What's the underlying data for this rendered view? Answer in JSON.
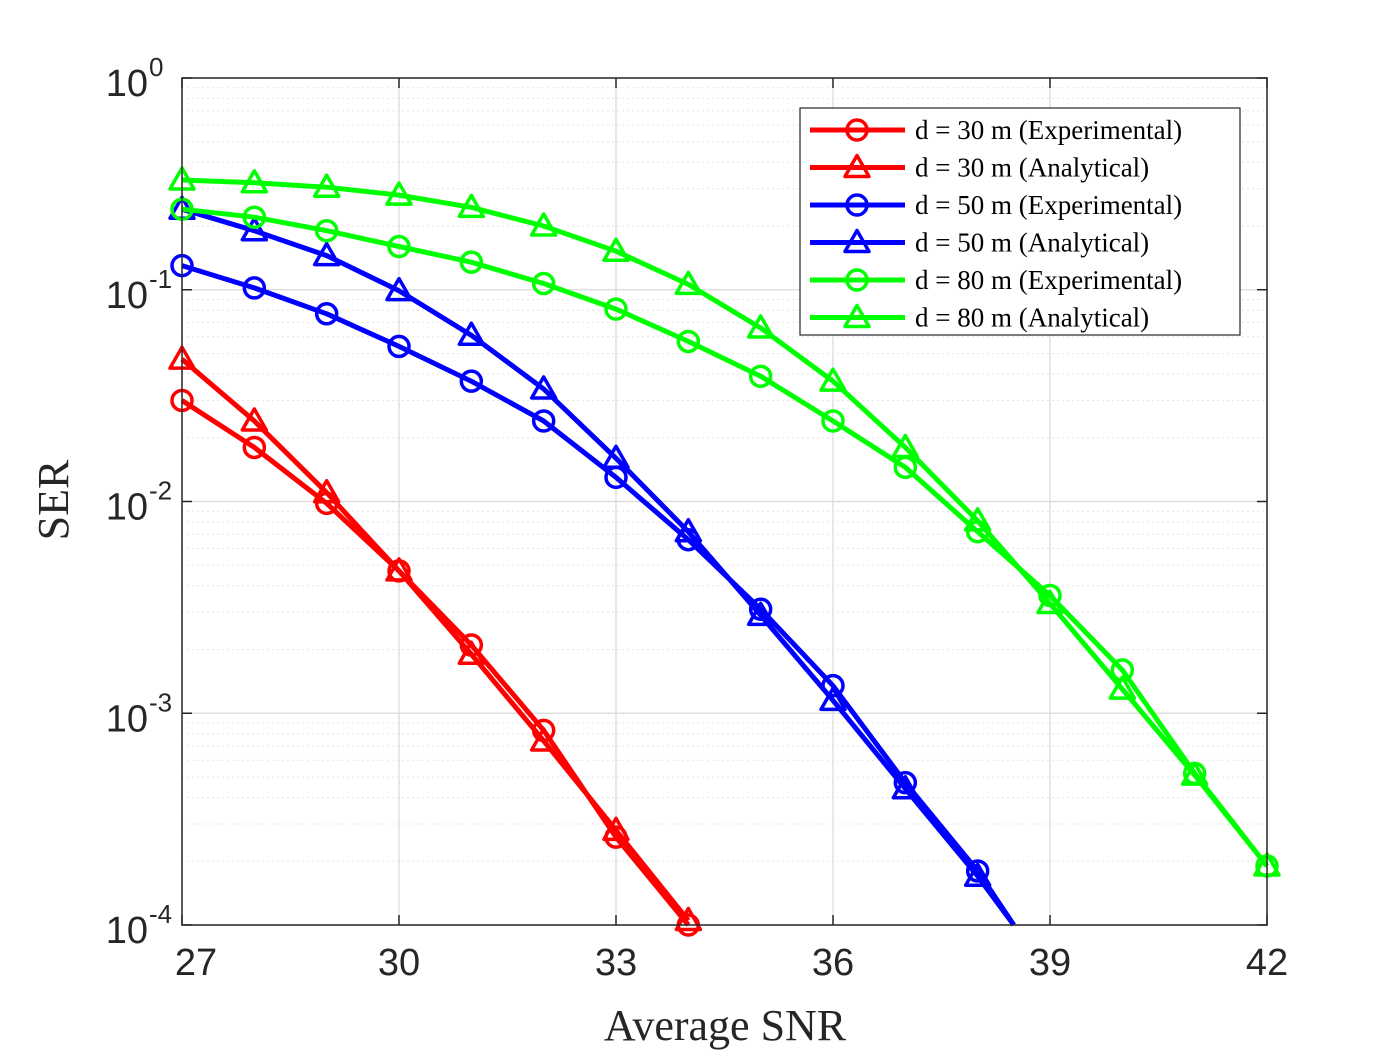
{
  "chart_data": {
    "type": "line",
    "title": "",
    "xlabel": "Average SNR",
    "ylabel": "SER",
    "xlim": [
      27,
      42
    ],
    "ylim": [
      0.0001,
      1
    ],
    "yscale": "log",
    "grid": true,
    "minor_grid": true,
    "legend_position": "top-right",
    "x_ticks": [
      {
        "value": 27,
        "label": "27"
      },
      {
        "value": 30,
        "label": "30"
      },
      {
        "value": 33,
        "label": "33"
      },
      {
        "value": 36,
        "label": "36"
      },
      {
        "value": 39,
        "label": "39"
      },
      {
        "value": 42,
        "label": "42"
      }
    ],
    "y_ticks": [
      {
        "value": 1,
        "base": "10",
        "exponent": "0"
      },
      {
        "value": 0.1,
        "base": "10",
        "exponent": "-1"
      },
      {
        "value": 0.01,
        "base": "10",
        "exponent": "-2"
      },
      {
        "value": 0.001,
        "base": "10",
        "exponent": "-3"
      },
      {
        "value": 0.0001,
        "base": "10",
        "exponent": "-4"
      }
    ],
    "series": [
      {
        "name": "d = 30 m (Experimental)",
        "color": "#ff0000",
        "marker": "circle",
        "x": [
          27,
          28,
          29,
          30,
          31,
          32,
          33,
          34
        ],
        "y": [
          0.03,
          0.018,
          0.0098,
          0.0047,
          0.0021,
          0.00083,
          0.00026,
          0.0001
        ]
      },
      {
        "name": "d = 30 m (Analytical)",
        "color": "#ff0000",
        "marker": "triangle",
        "x": [
          27,
          28,
          29,
          30,
          31,
          32,
          33,
          34
        ],
        "y": [
          0.047,
          0.024,
          0.011,
          0.0047,
          0.0019,
          0.00074,
          0.00028,
          0.000105
        ]
      },
      {
        "name": "d = 50 m (Experimental)",
        "color": "#0000ff",
        "marker": "circle",
        "x": [
          27,
          28,
          29,
          30,
          31,
          32,
          33,
          34,
          35,
          36,
          37,
          38,
          38.5
        ],
        "y": [
          0.13,
          0.102,
          0.077,
          0.054,
          0.037,
          0.024,
          0.013,
          0.0066,
          0.0031,
          0.00135,
          0.00047,
          0.00018,
          0.0001
        ]
      },
      {
        "name": "d = 50 m (Analytical)",
        "color": "#0000ff",
        "marker": "triangle",
        "x": [
          27,
          28,
          29,
          30,
          31,
          32,
          33,
          34,
          35,
          36,
          37,
          38,
          38.5
        ],
        "y": [
          0.24,
          0.19,
          0.145,
          0.099,
          0.061,
          0.034,
          0.016,
          0.0072,
          0.0029,
          0.00115,
          0.00044,
          0.00017,
          0.0001
        ]
      },
      {
        "name": "d = 80 m (Experimental)",
        "color": "#00ff00",
        "marker": "circle",
        "x": [
          27,
          28,
          29,
          30,
          31,
          32,
          33,
          34,
          35,
          36,
          37,
          38,
          39,
          40,
          41,
          42
        ],
        "y": [
          0.24,
          0.22,
          0.19,
          0.16,
          0.135,
          0.107,
          0.081,
          0.057,
          0.039,
          0.024,
          0.0145,
          0.0072,
          0.0036,
          0.0016,
          0.00052,
          0.00019
        ]
      },
      {
        "name": "d = 80 m (Analytical)",
        "color": "#00ff00",
        "marker": "triangle",
        "x": [
          27,
          28,
          29,
          30,
          31,
          32,
          33,
          34,
          35,
          36,
          37,
          38,
          39,
          40,
          41,
          42
        ],
        "y": [
          0.33,
          0.32,
          0.305,
          0.28,
          0.245,
          0.2,
          0.152,
          0.106,
          0.066,
          0.037,
          0.018,
          0.0081,
          0.0033,
          0.0013,
          0.00051,
          0.00019
        ]
      }
    ]
  }
}
